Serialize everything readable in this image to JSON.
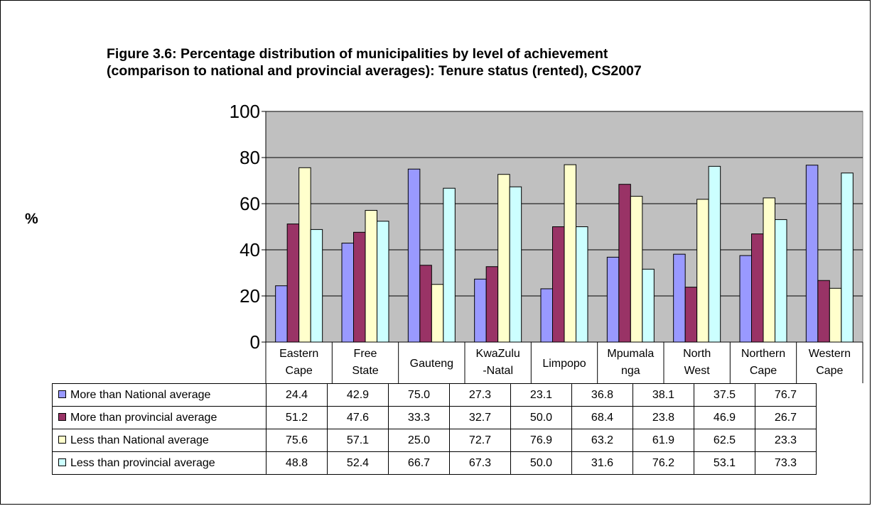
{
  "title_lines": [
    "Figure 3.6: Percentage distribution of municipalities by level of achievement",
    "(comparison to national and provincial averages): Tenure status (rented), CS2007"
  ],
  "chart_data": {
    "type": "bar",
    "title": "Figure 3.6: Percentage distribution of municipalities by level of achievement (comparison to national and provincial averages): Tenure status (rented), CS2007",
    "ylabel": "%",
    "xlabel": "",
    "ylim": [
      0,
      100
    ],
    "yticks": [
      "0",
      "20",
      "40",
      "60",
      "80",
      "100"
    ],
    "grid": true,
    "legend": "data table below chart",
    "categories": [
      [
        "Eastern",
        "Cape"
      ],
      [
        "Free",
        "State"
      ],
      [
        "Gauteng"
      ],
      [
        "KwaZulu",
        "-Natal"
      ],
      [
        "Limpopo"
      ],
      [
        "Mpumala",
        "nga"
      ],
      [
        "North",
        "West"
      ],
      [
        "Northern",
        "Cape"
      ],
      [
        "Western",
        "Cape"
      ]
    ],
    "series": [
      {
        "name": "More than National average",
        "color": "#9999FF",
        "values": [
          24.4,
          42.9,
          75.0,
          27.3,
          23.1,
          36.8,
          38.1,
          37.5,
          76.7
        ]
      },
      {
        "name": "More than provincial average",
        "color": "#993366",
        "values": [
          51.2,
          47.6,
          33.3,
          32.7,
          50.0,
          68.4,
          23.8,
          46.9,
          26.7
        ]
      },
      {
        "name": "Less than National average",
        "color": "#FFFFCC",
        "values": [
          75.6,
          57.1,
          25.0,
          72.7,
          76.9,
          63.2,
          61.9,
          62.5,
          23.3
        ]
      },
      {
        "name": "Less than provincial average",
        "color": "#CCFFFF",
        "values": [
          48.8,
          52.4,
          66.7,
          67.3,
          50.0,
          31.6,
          76.2,
          53.1,
          73.3
        ]
      }
    ],
    "plot_background": "#C0C0C0"
  }
}
